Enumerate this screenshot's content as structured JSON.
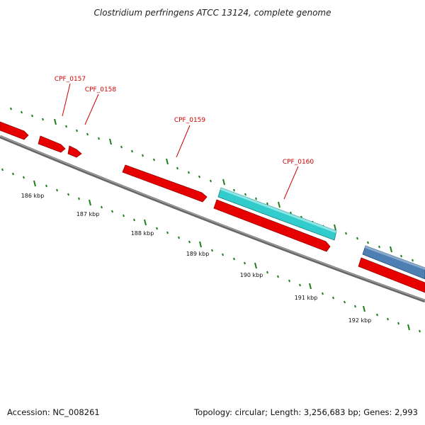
{
  "title": "Clostridium perfringens ATCC 13124, complete genome",
  "footer": {
    "accession": "Accession: NC_008261",
    "summary": "Topology: circular; Length: 3,256,683 bp; Genes: 2,993"
  },
  "colors": {
    "backbone": "#888888",
    "gene_forward": "#e60000",
    "gene_highlight": "#33cccc",
    "gene_other": "#4d7fb3",
    "label": "#cc0000",
    "tick": "#1a801a"
  },
  "scale_labels": [
    "186 kbp",
    "187 kbp",
    "188 kbp",
    "189 kbp",
    "190 kbp",
    "191 kbp",
    "192 kbp"
  ],
  "gene_labels": [
    "CPF_0157",
    "CPF_0158",
    "CPF_0159",
    "CPF_0160"
  ]
}
